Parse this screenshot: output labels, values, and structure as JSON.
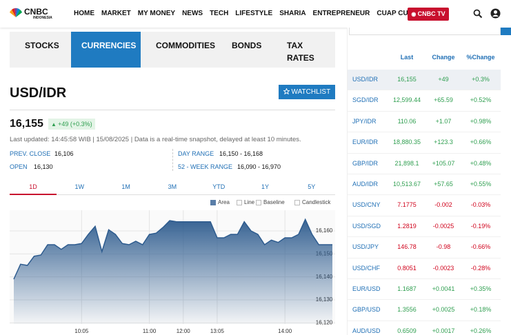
{
  "nav": {
    "logo": "CNBC",
    "logo_sub": "INDONESIA",
    "items": [
      "HOME",
      "MARKET",
      "MY MONEY",
      "NEWS",
      "TECH",
      "LIFESTYLE",
      "SHARIA",
      "ENTREPRENEUR",
      "CUAP CUAP CUAN"
    ],
    "tv_button": "CNBC TV"
  },
  "tabs": {
    "items": [
      "STOCKS",
      "CURRENCIES",
      "COMMODITIES",
      "BONDS",
      "TAX RATES"
    ],
    "active": 1
  },
  "quote": {
    "symbol": "USD/IDR",
    "watchlist": "WATCHLIST",
    "price": "16,155",
    "change": "+49 (+0.3%)",
    "updated": "Last updated: 14:45:58 WIB | 15/08/2025 | Data is a real-time snapshot, delayed at least 10 minutes.",
    "stats": [
      {
        "label": "PREV. CLOSE",
        "value": "16,106"
      },
      {
        "label": "DAY RANGE",
        "value": "16,150 - 16,168"
      },
      {
        "label": "OPEN",
        "value": "16,130"
      },
      {
        "label": "52 - WEEK RANGE",
        "value": "16,090 - 16,970"
      }
    ]
  },
  "ranges": {
    "items": [
      "1D",
      "1W",
      "1M",
      "3M",
      "YTD",
      "1Y",
      "5Y"
    ],
    "active": 0
  },
  "chart_options": {
    "items": [
      "Area",
      "Line",
      "Baseline",
      "Candlestick"
    ],
    "active": 0
  },
  "chart_data": {
    "type": "area",
    "color": "#2d5b8e",
    "categories": [
      null,
      null,
      null,
      null,
      null,
      null,
      null,
      null,
      null,
      null,
      "10:05",
      null,
      null,
      null,
      null,
      null,
      null,
      null,
      null,
      null,
      "11:00",
      null,
      null,
      null,
      null,
      "12:00",
      null,
      null,
      null,
      null,
      "13:05",
      null,
      null,
      null,
      null,
      null,
      null,
      null,
      null,
      null,
      "14:00",
      null,
      null,
      null,
      null,
      null,
      null,
      null
    ],
    "values": [
      16139,
      16145.5,
      16145,
      16149,
      16149.5,
      16154,
      16154,
      16152,
      16154,
      16154,
      16154.5,
      16158.5,
      16162,
      16151,
      16160.5,
      16158.5,
      16154.5,
      16154,
      16155.5,
      16154,
      16158.5,
      16159,
      16161.5,
      16164.5,
      16164,
      16164,
      16164,
      16164,
      16164,
      16164,
      16157,
      16157,
      16158.5,
      16158.5,
      16164,
      16160,
      16158.5,
      16154,
      16156,
      16155,
      16157,
      16157,
      16158.5,
      16165,
      16158.5,
      16154,
      16154,
      16154
    ],
    "ylim": [
      16119.5,
      16169
    ],
    "yticks": [
      {
        "value": 16120,
        "label": "16,120"
      },
      {
        "value": 16130,
        "label": "16,130"
      },
      {
        "value": 16140,
        "label": "16,140"
      },
      {
        "value": 16150,
        "label": "16,150"
      },
      {
        "value": 16160,
        "label": "16,160"
      }
    ],
    "grid": true
  },
  "table": {
    "headers": [
      "Last",
      "Change",
      "%Change"
    ],
    "active_row": 0,
    "rows": [
      [
        "USD/IDR",
        "16,155",
        "+49",
        "+0.3%"
      ],
      [
        "SGD/IDR",
        "12,599.44",
        "+65.59",
        "+0.52%"
      ],
      [
        "JPY/IDR",
        "110.06",
        "+1.07",
        "+0.98%"
      ],
      [
        "EUR/IDR",
        "18,880.35",
        "+123.3",
        "+0.66%"
      ],
      [
        "GBP/IDR",
        "21,898.1",
        "+105.07",
        "+0.48%"
      ],
      [
        "AUD/IDR",
        "10,513.67",
        "+57.65",
        "+0.55%"
      ],
      [
        "USD/CNY",
        "7.1775",
        "-0.002",
        "-0.03%"
      ],
      [
        "USD/SGD",
        "1.2819",
        "-0.0025",
        "-0.19%"
      ],
      [
        "USD/JPY",
        "146.78",
        "-0.98",
        "-0.66%"
      ],
      [
        "USD/CHF",
        "0.8051",
        "-0.0023",
        "-0.28%"
      ],
      [
        "EUR/USD",
        "1.1687",
        "+0.0041",
        "+0.35%"
      ],
      [
        "GBP/USD",
        "1.3556",
        "+0.0025",
        "+0.18%"
      ],
      [
        "AUD/USD",
        "0.6509",
        "+0.0017",
        "+0.26%"
      ]
    ]
  }
}
